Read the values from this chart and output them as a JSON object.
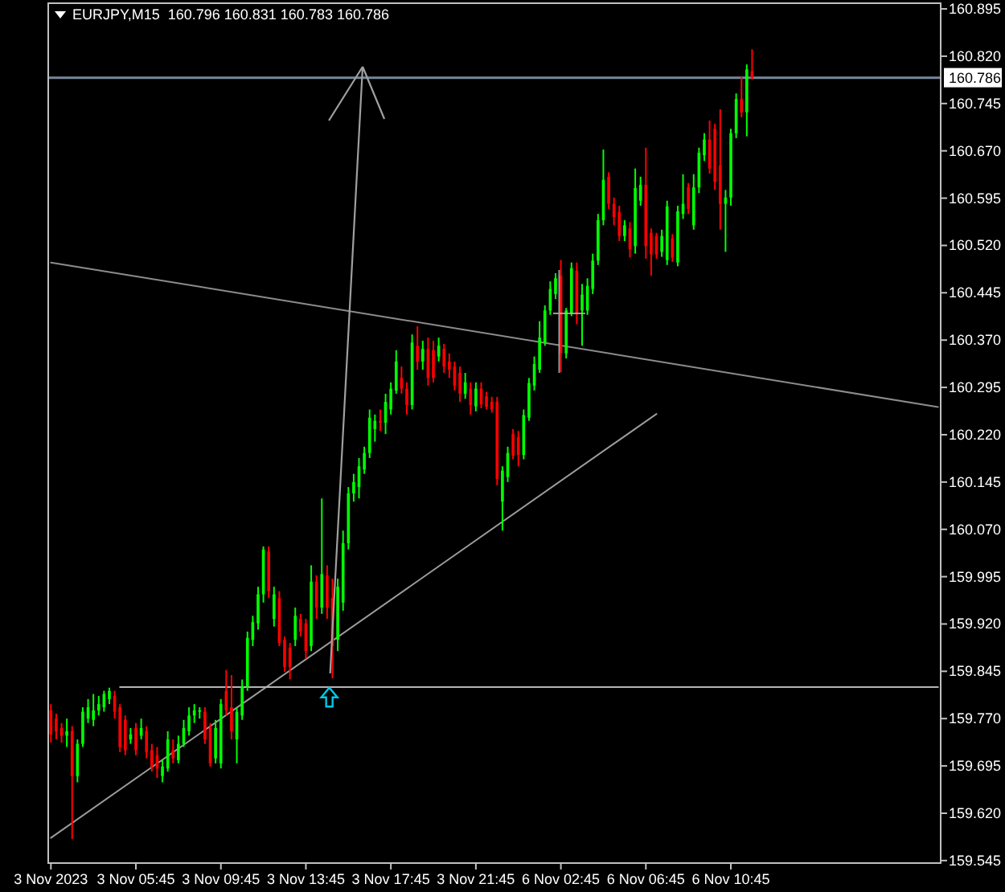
{
  "chart_data": {
    "type": "candlestick",
    "title": "EURJPY,M15  160.796 160.831 160.783 160.786",
    "categories": [
      "3 Nov 2023",
      null,
      null,
      null,
      null,
      null,
      null,
      null,
      null,
      null,
      null,
      null,
      null,
      null,
      null,
      null,
      "3 Nov 05:45",
      null,
      null,
      null,
      null,
      null,
      null,
      null,
      null,
      null,
      null,
      null,
      null,
      null,
      null,
      null,
      "3 Nov 09:45",
      null,
      null,
      null,
      null,
      null,
      null,
      null,
      null,
      null,
      null,
      null,
      null,
      null,
      null,
      null,
      "3 Nov 13:45",
      null,
      null,
      null,
      null,
      null,
      null,
      null,
      null,
      null,
      null,
      null,
      null,
      null,
      null,
      null,
      "3 Nov 17:45",
      null,
      null,
      null,
      null,
      null,
      null,
      null,
      null,
      null,
      null,
      null,
      null,
      null,
      null,
      null,
      "3 Nov 21:45",
      null,
      null,
      null,
      null,
      null,
      null,
      null,
      null,
      null,
      null,
      null,
      null,
      null,
      null,
      null,
      "6 Nov 02:45",
      null,
      null,
      null,
      null,
      null,
      null,
      null,
      null,
      null,
      null,
      null,
      null,
      null,
      null,
      null,
      "6 Nov 06:45",
      null,
      null,
      null,
      null,
      null,
      null,
      null,
      null,
      null,
      null,
      null,
      null,
      null,
      null,
      null,
      "6 Nov 10:45",
      null,
      null,
      null,
      null,
      null,
      null,
      null,
      null,
      null,
      null,
      null,
      null,
      null,
      null,
      null,
      null,
      null,
      null,
      null,
      null,
      null,
      null,
      null,
      null,
      null,
      null,
      null,
      null,
      null,
      null,
      null,
      null,
      null,
      null,
      null,
      null,
      null,
      null,
      null
    ],
    "ohlc": [
      [
        159.783,
        159.793,
        159.732,
        159.745
      ],
      [
        159.77,
        159.778,
        159.737,
        159.75
      ],
      [
        159.755,
        159.763,
        159.732,
        159.743
      ],
      [
        159.743,
        159.77,
        159.725,
        159.75
      ],
      [
        159.75,
        159.758,
        159.579,
        159.679
      ],
      [
        159.679,
        159.737,
        159.669,
        159.73
      ],
      [
        159.73,
        159.788,
        159.725,
        159.781
      ],
      [
        159.77,
        159.801,
        159.763,
        159.788
      ],
      [
        159.768,
        159.809,
        159.758,
        159.783
      ],
      [
        159.783,
        159.806,
        159.775,
        159.793
      ],
      [
        159.788,
        159.814,
        159.781,
        159.809
      ],
      [
        159.801,
        159.819,
        159.793,
        159.814
      ],
      [
        159.806,
        159.814,
        159.77,
        159.781
      ],
      [
        159.788,
        159.793,
        159.717,
        159.725
      ],
      [
        159.768,
        159.775,
        159.712,
        159.72
      ],
      [
        159.737,
        159.755,
        159.73,
        159.745
      ],
      [
        159.755,
        159.763,
        159.712,
        159.72
      ],
      [
        159.743,
        159.77,
        159.737,
        159.755
      ],
      [
        159.75,
        159.758,
        159.707,
        159.717
      ],
      [
        159.72,
        159.73,
        159.686,
        159.694
      ],
      [
        159.712,
        159.725,
        159.676,
        159.691
      ],
      [
        159.679,
        159.704,
        159.669,
        159.694
      ],
      [
        159.691,
        159.75,
        159.686,
        159.737
      ],
      [
        159.72,
        159.737,
        159.699,
        159.707
      ],
      [
        159.704,
        159.743,
        159.699,
        159.73
      ],
      [
        159.73,
        159.768,
        159.725,
        159.755
      ],
      [
        159.75,
        159.788,
        159.743,
        159.775
      ],
      [
        159.775,
        159.793,
        159.763,
        159.783
      ],
      [
        159.781,
        159.788,
        159.77,
        159.783
      ],
      [
        159.781,
        159.788,
        159.73,
        159.737
      ],
      [
        159.755,
        159.763,
        159.694,
        159.699
      ],
      [
        159.707,
        159.768,
        159.699,
        159.755
      ],
      [
        159.699,
        159.801,
        159.691,
        159.793
      ],
      [
        159.814,
        159.847,
        159.775,
        159.783
      ],
      [
        159.788,
        159.839,
        159.737,
        159.75
      ],
      [
        159.737,
        159.788,
        159.699,
        159.781
      ],
      [
        159.775,
        159.832,
        159.768,
        159.821
      ],
      [
        159.821,
        159.908,
        159.814,
        159.898
      ],
      [
        159.895,
        159.933,
        159.885,
        159.923
      ],
      [
        159.921,
        159.979,
        159.911,
        159.967
      ],
      [
        159.967,
        160.043,
        159.954,
        160.038
      ],
      [
        160.035,
        160.043,
        159.961,
        159.972
      ],
      [
        159.928,
        159.979,
        159.916,
        159.967
      ],
      [
        159.961,
        159.972,
        159.885,
        159.89
      ],
      [
        159.895,
        159.9,
        159.844,
        159.852
      ],
      [
        159.882,
        159.89,
        159.832,
        159.852
      ],
      [
        159.895,
        159.946,
        159.885,
        159.933
      ],
      [
        159.928,
        159.936,
        159.9,
        159.908
      ],
      [
        159.921,
        159.928,
        159.865,
        159.877
      ],
      [
        159.885,
        160.013,
        159.877,
        159.987
      ],
      [
        159.987,
        159.997,
        159.928,
        159.946
      ],
      [
        159.946,
        160.119,
        159.936,
        159.999
      ],
      [
        159.997,
        160.013,
        159.928,
        159.946
      ],
      [
        159.961,
        159.992,
        159.834,
        159.885
      ],
      [
        159.895,
        159.992,
        159.877,
        159.979
      ],
      [
        159.954,
        160.068,
        159.941,
        160.048
      ],
      [
        160.048,
        160.137,
        160.038,
        160.127
      ],
      [
        160.127,
        160.158,
        160.114,
        160.145
      ],
      [
        160.137,
        160.183,
        160.119,
        160.17
      ],
      [
        160.165,
        160.201,
        160.158,
        160.191
      ],
      [
        160.191,
        160.26,
        160.183,
        160.247
      ],
      [
        160.229,
        160.252,
        160.209,
        160.242
      ],
      [
        160.242,
        160.26,
        160.226,
        160.239
      ],
      [
        160.239,
        160.285,
        160.221,
        160.272
      ],
      [
        160.26,
        160.303,
        160.252,
        160.293
      ],
      [
        160.29,
        160.354,
        160.285,
        160.336
      ],
      [
        160.31,
        160.328,
        160.285,
        160.293
      ],
      [
        160.293,
        160.303,
        160.252,
        160.267
      ],
      [
        160.267,
        160.379,
        160.26,
        160.366
      ],
      [
        160.361,
        160.392,
        160.323,
        160.336
      ],
      [
        160.336,
        160.369,
        160.323,
        160.356
      ],
      [
        160.356,
        160.374,
        160.298,
        160.31
      ],
      [
        160.354,
        160.369,
        160.303,
        160.31
      ],
      [
        160.344,
        160.374,
        160.336,
        160.361
      ],
      [
        160.356,
        160.364,
        160.318,
        160.328
      ],
      [
        160.336,
        160.349,
        160.31,
        160.323
      ],
      [
        160.328,
        160.336,
        160.29,
        160.298
      ],
      [
        160.318,
        160.328,
        160.272,
        160.285
      ],
      [
        160.285,
        160.318,
        160.277,
        160.303
      ],
      [
        160.293,
        160.303,
        160.252,
        160.267
      ],
      [
        160.265,
        160.303,
        160.257,
        160.293
      ],
      [
        160.293,
        160.303,
        160.262,
        160.268
      ],
      [
        160.281,
        160.288,
        160.26,
        160.264
      ],
      [
        160.272,
        160.28,
        160.255,
        160.26
      ],
      [
        160.272,
        160.28,
        160.14,
        160.15
      ],
      [
        160.114,
        160.17,
        160.068,
        160.163
      ],
      [
        160.153,
        160.201,
        160.145,
        160.191
      ],
      [
        160.221,
        160.229,
        160.181,
        160.187
      ],
      [
        160.216,
        160.226,
        160.17,
        160.188
      ],
      [
        160.188,
        160.26,
        160.181,
        160.251
      ],
      [
        160.247,
        160.31,
        160.242,
        160.302
      ],
      [
        160.298,
        160.344,
        160.29,
        160.332
      ],
      [
        160.323,
        160.4,
        160.318,
        160.374
      ],
      [
        160.366,
        160.425,
        160.361,
        160.417
      ],
      [
        160.417,
        160.463,
        160.41,
        160.451
      ],
      [
        160.443,
        160.476,
        160.435,
        160.468
      ],
      [
        160.472,
        160.497,
        160.319,
        160.349
      ],
      [
        160.349,
        160.421,
        160.341,
        160.417
      ],
      [
        160.412,
        160.493,
        160.408,
        160.484
      ],
      [
        160.48,
        160.493,
        160.395,
        160.412
      ],
      [
        160.417,
        160.459,
        160.361,
        160.442
      ],
      [
        160.417,
        160.468,
        160.41,
        160.456
      ],
      [
        160.451,
        160.507,
        160.443,
        160.496
      ],
      [
        160.496,
        160.57,
        160.489,
        160.56
      ],
      [
        160.56,
        160.672,
        160.552,
        160.624
      ],
      [
        160.629,
        160.636,
        160.578,
        160.586
      ],
      [
        160.586,
        160.596,
        160.552,
        160.565
      ],
      [
        160.573,
        160.583,
        160.527,
        160.535
      ],
      [
        160.535,
        160.56,
        160.527,
        160.552
      ],
      [
        160.547,
        160.557,
        160.501,
        160.514
      ],
      [
        160.519,
        160.642,
        160.507,
        160.611
      ],
      [
        160.591,
        160.629,
        160.583,
        160.616
      ],
      [
        160.616,
        160.675,
        160.499,
        160.519
      ],
      [
        160.54,
        160.547,
        160.472,
        160.506
      ],
      [
        160.535,
        160.54,
        160.499,
        160.506
      ],
      [
        160.51,
        160.545,
        160.502,
        160.535
      ],
      [
        160.497,
        160.591,
        160.489,
        160.582
      ],
      [
        160.531,
        160.538,
        160.494,
        160.501
      ],
      [
        160.493,
        160.583,
        160.487,
        160.574
      ],
      [
        160.57,
        160.633,
        160.562,
        160.586
      ],
      [
        160.612,
        160.619,
        160.57,
        160.578
      ],
      [
        160.552,
        160.633,
        160.545,
        160.612
      ],
      [
        160.612,
        160.675,
        160.603,
        160.667
      ],
      [
        160.663,
        160.698,
        160.654,
        160.688
      ],
      [
        160.688,
        160.718,
        160.634,
        160.642
      ],
      [
        160.705,
        160.713,
        160.608,
        160.621
      ],
      [
        160.647,
        160.736,
        160.545,
        160.586
      ],
      [
        160.586,
        160.608,
        160.51,
        160.596
      ],
      [
        160.596,
        160.705,
        160.583,
        160.698
      ],
      [
        160.698,
        160.761,
        160.69,
        160.752
      ],
      [
        160.752,
        160.787,
        160.723,
        160.731
      ],
      [
        160.731,
        160.807,
        160.693,
        160.799
      ],
      [
        160.796,
        160.831,
        160.783,
        160.786
      ],
      null,
      null,
      null,
      null,
      null,
      null,
      null,
      null,
      null,
      null,
      null,
      null,
      null,
      null,
      null,
      null,
      null,
      null,
      null,
      null,
      null,
      null,
      null,
      null,
      null,
      null,
      null,
      null,
      null,
      null,
      null,
      null,
      null,
      null,
      null
    ],
    "colors": [
      "#ff0000",
      "#ff0000",
      "#ff0000",
      "#00ff00",
      "#ff0000",
      "#00ff00",
      "#00ff00",
      "#00ff00",
      "#00ff00",
      "#00ff00",
      "#00ff00",
      "#00ff00",
      "#ff0000",
      "#ff0000",
      "#ff0000",
      "#00ff00",
      "#ff0000",
      "#00ff00",
      "#ff0000",
      "#ff0000",
      "#ff0000",
      "#00ff00",
      "#00ff00",
      "#ff0000",
      "#00ff00",
      "#00ff00",
      "#00ff00",
      "#00ff00",
      "#00ff00",
      "#ff0000",
      "#ff0000",
      "#00ff00",
      "#00ff00",
      "#ff0000",
      "#ff0000",
      "#00ff00",
      "#00ff00",
      "#00ff00",
      "#00ff00",
      "#00ff00",
      "#00ff00",
      "#ff0000",
      "#00ff00",
      "#ff0000",
      "#ff0000",
      "#ff0000",
      "#00ff00",
      "#ff0000",
      "#ff0000",
      "#00ff00",
      "#ff0000",
      "#00ff00",
      "#ff0000",
      "#ff0000",
      "#00ff00",
      "#00ff00",
      "#00ff00",
      "#00ff00",
      "#00ff00",
      "#00ff00",
      "#00ff00",
      "#00ff00",
      "#ff0000",
      "#00ff00",
      "#00ff00",
      "#00ff00",
      "#ff0000",
      "#ff0000",
      "#00ff00",
      "#ff0000",
      "#00ff00",
      "#ff0000",
      "#ff0000",
      "#00ff00",
      "#ff0000",
      "#ff0000",
      "#ff0000",
      "#ff0000",
      "#00ff00",
      "#ff0000",
      "#00ff00",
      "#ff0000",
      "#ff0000",
      "#ff0000",
      "#ff0000",
      "#00ff00",
      "#00ff00",
      "#ff0000",
      "#ff0000",
      "#00ff00",
      "#00ff00",
      "#00ff00",
      "#00ff00",
      "#00ff00",
      "#00ff00",
      "#00ff00",
      "#ff0000",
      "#00ff00",
      "#00ff00",
      "#ff0000",
      "#00ff00",
      "#00ff00",
      "#00ff00",
      "#00ff00",
      "#00ff00",
      "#ff0000",
      "#ff0000",
      "#ff0000",
      "#00ff00",
      "#ff0000",
      "#00ff00",
      "#00ff00",
      "#ff0000",
      "#ff0000",
      "#ff0000",
      "#00ff00",
      "#00ff00",
      "#ff0000",
      "#00ff00",
      "#00ff00",
      "#ff0000",
      "#00ff00",
      "#00ff00",
      "#00ff00",
      "#ff0000",
      "#ff0000",
      "#ff0000",
      "#00ff00",
      "#00ff00",
      "#00ff00",
      "#ff0000",
      "#00ff00",
      "#ff0000",
      null,
      null,
      null,
      null,
      null,
      null,
      null,
      null,
      null,
      null,
      null,
      null,
      null,
      null,
      null,
      null,
      null,
      null,
      null,
      null,
      null,
      null,
      null,
      null,
      null,
      null,
      null,
      null,
      null,
      null,
      null,
      null,
      null,
      null,
      null
    ],
    "ylim": [
      159.541,
      160.904
    ],
    "yticks": [
      159.545,
      {
        "value": 159.62,
        "label": "159.620"
      },
      159.695,
      {
        "value": 159.77,
        "label": "159.770"
      },
      159.845,
      {
        "value": 159.92,
        "label": "159.920"
      },
      159.995,
      {
        "value": 160.07,
        "label": "160.070"
      },
      160.145,
      {
        "value": 160.22,
        "label": "160.220"
      },
      160.295,
      {
        "value": 160.37,
        "label": "160.370"
      },
      160.445,
      {
        "value": 160.52,
        "label": "160.520"
      },
      160.595,
      {
        "value": 160.67,
        "label": "160.670"
      },
      160.745,
      {
        "value": 160.82,
        "label": "160.820"
      },
      160.895
    ],
    "ref_lines": [
      {
        "axis": "y",
        "value": 160.786,
        "label": "160.786",
        "color": "#778899"
      }
    ],
    "series": [
      {
        "type": "line",
        "color": "#8c8c8c",
        "values": [
          160.493,
          null,
          null,
          null,
          null,
          null,
          null,
          null,
          null,
          null,
          null,
          null,
          null,
          null,
          null,
          null,
          null,
          null,
          null,
          null,
          null,
          null,
          null,
          null,
          null,
          null,
          null,
          null,
          null,
          null,
          null,
          null,
          null,
          null,
          null,
          null,
          null,
          null,
          null,
          null,
          null,
          null,
          null,
          null,
          null,
          null,
          null,
          null,
          null,
          null,
          null,
          null,
          null,
          null,
          null,
          null,
          null,
          null,
          null,
          null,
          null,
          null,
          null,
          null,
          null,
          null,
          null,
          null,
          null,
          null,
          null,
          null,
          null,
          null,
          null,
          null,
          null,
          null,
          null,
          null,
          null,
          null,
          null,
          null,
          null,
          null,
          null,
          null,
          null,
          null,
          null,
          null,
          null,
          null,
          null,
          null,
          null,
          null,
          null,
          null,
          null,
          null,
          null,
          null,
          null,
          null,
          null,
          null,
          null,
          null,
          null,
          null,
          null,
          null,
          null,
          null,
          null,
          null,
          null,
          null,
          null,
          null,
          null,
          null,
          null,
          null,
          null,
          null,
          null,
          null,
          null,
          null,
          null,
          null,
          null,
          null,
          null,
          null,
          null,
          null,
          null,
          null,
          null,
          null,
          null,
          null,
          null,
          null,
          null,
          null,
          null,
          null,
          null,
          null,
          null,
          null,
          null,
          null,
          null,
          null,
          null,
          null,
          null,
          null,
          null,
          null,
          null,
          160.264
        ]
      },
      {
        "type": "line",
        "color": "#9c9c9c",
        "values": [
          159.581,
          null,
          null,
          null,
          null,
          null,
          null,
          null,
          null,
          null,
          null,
          null,
          null,
          null,
          null,
          null,
          null,
          null,
          null,
          null,
          null,
          null,
          null,
          null,
          null,
          null,
          null,
          null,
          null,
          null,
          null,
          null,
          null,
          null,
          null,
          null,
          null,
          null,
          null,
          null,
          null,
          null,
          null,
          null,
          null,
          null,
          null,
          null,
          null,
          null,
          null,
          null,
          null,
          null,
          null,
          null,
          null,
          null,
          null,
          null,
          null,
          null,
          null,
          null,
          null,
          null,
          null,
          null,
          null,
          null,
          null,
          null,
          null,
          null,
          null,
          null,
          null,
          null,
          null,
          null,
          null,
          null,
          null,
          null,
          null,
          null,
          null,
          null,
          null,
          null,
          null,
          null,
          null,
          null,
          null,
          null,
          null,
          null,
          null,
          null,
          null,
          null,
          null,
          null,
          null,
          null,
          null,
          null,
          null,
          null,
          null,
          null,
          null,
          null,
          160.253,
          null,
          null,
          null,
          null,
          null,
          null,
          null,
          null,
          null,
          null,
          null,
          null,
          null,
          null,
          null,
          null,
          null,
          null,
          null,
          null,
          null,
          null,
          null,
          null,
          null,
          null,
          null,
          null,
          null,
          null,
          null,
          null,
          null,
          null,
          null,
          null,
          null,
          null,
          null,
          null,
          null,
          null,
          null,
          null,
          null,
          null,
          null,
          null,
          null,
          null,
          null,
          null,
          null
        ]
      },
      {
        "type": "line",
        "color": "#b4b4b4",
        "values": [
          null,
          null,
          null,
          null,
          null,
          null,
          null,
          null,
          null,
          null,
          null,
          null,
          null,
          159.82,
          null,
          null,
          null,
          null,
          null,
          null,
          null,
          null,
          null,
          null,
          null,
          null,
          null,
          null,
          null,
          null,
          null,
          null,
          null,
          null,
          null,
          null,
          null,
          null,
          null,
          null,
          null,
          null,
          null,
          null,
          null,
          null,
          null,
          null,
          null,
          null,
          null,
          null,
          null,
          null,
          null,
          null,
          null,
          null,
          null,
          null,
          null,
          null,
          null,
          null,
          null,
          null,
          null,
          null,
          null,
          null,
          null,
          null,
          null,
          null,
          null,
          null,
          null,
          null,
          null,
          null,
          null,
          null,
          null,
          null,
          null,
          null,
          null,
          null,
          null,
          null,
          null,
          null,
          null,
          null,
          null,
          null,
          null,
          null,
          null,
          null,
          null,
          null,
          null,
          null,
          null,
          null,
          null,
          null,
          null,
          null,
          null,
          null,
          null,
          null,
          null,
          null,
          null,
          null,
          null,
          null,
          null,
          null,
          null,
          null,
          null,
          null,
          null,
          null,
          null,
          null,
          null,
          null,
          null,
          null,
          null,
          null,
          null,
          null,
          null,
          null,
          null,
          null,
          null,
          null,
          null,
          null,
          null,
          null,
          null,
          null,
          null,
          null,
          null,
          null,
          null,
          null,
          null,
          null,
          null,
          null,
          null,
          null,
          null,
          null,
          null,
          null,
          null,
          159.82
        ]
      }
    ]
  }
}
